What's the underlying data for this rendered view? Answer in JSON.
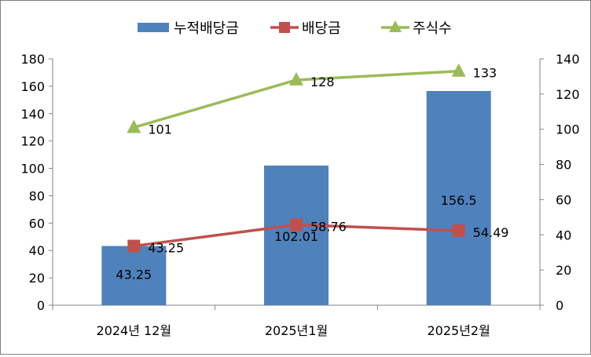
{
  "chart_data": {
    "type": "bar+line",
    "categories": [
      "2024년 12월",
      "2025년1월",
      "2025년2월"
    ],
    "series": [
      {
        "name": "누적배당금",
        "kind": "bar",
        "axis": "left",
        "color": "#4f81bd",
        "values": [
          43.25,
          102.01,
          156.5
        ],
        "labels": [
          "43.25",
          "102.01",
          "156.5"
        ]
      },
      {
        "name": "배당금",
        "kind": "line",
        "marker": "square",
        "axis": "left",
        "color": "#c0504d",
        "values": [
          43.25,
          58.76,
          54.49
        ],
        "labels": [
          "43.25",
          "58.76",
          "54.49"
        ]
      },
      {
        "name": "주식수",
        "kind": "line",
        "marker": "triangle",
        "axis": "right",
        "color": "#9bbb59",
        "values": [
          101,
          128,
          133
        ],
        "labels": [
          "101",
          "128",
          "133"
        ]
      }
    ],
    "y_left": {
      "min": 0,
      "max": 180,
      "step": 20,
      "ticks": [
        "0",
        "20",
        "40",
        "60",
        "80",
        "100",
        "120",
        "140",
        "160",
        "180"
      ]
    },
    "y_right": {
      "min": 0,
      "max": 140,
      "step": 20,
      "ticks": [
        "0",
        "20",
        "40",
        "60",
        "80",
        "100",
        "120",
        "140"
      ]
    },
    "legend": "top-center",
    "grid": false
  }
}
